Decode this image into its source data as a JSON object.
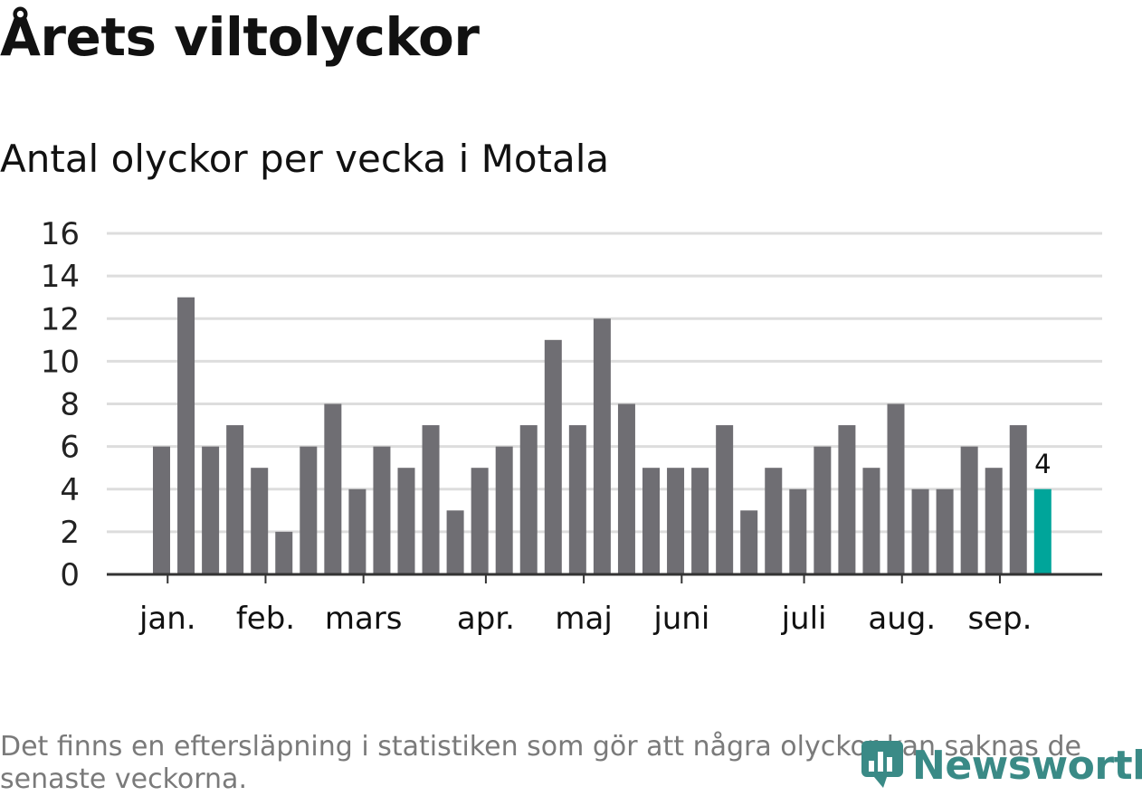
{
  "header": {
    "title": "Årets viltolyckor",
    "subtitle": "Antal olyckor per vecka i Motala"
  },
  "footnote": "Det finns en eftersläpning i statistiken som gör att några olyckor kan saknas de senaste veckorna.",
  "brand": {
    "name": "Newsworthy",
    "icon": "chart-speech-bubble-icon",
    "color": "#3a8a86"
  },
  "chart_data": {
    "type": "bar",
    "values": [
      6,
      13,
      6,
      7,
      5,
      2,
      6,
      8,
      4,
      6,
      5,
      7,
      3,
      5,
      6,
      7,
      11,
      7,
      12,
      8,
      5,
      5,
      5,
      7,
      3,
      5,
      4,
      6,
      7,
      5,
      8,
      4,
      4,
      6,
      5,
      7,
      4
    ],
    "ylim": [
      0,
      16
    ],
    "yticks": [
      0,
      2,
      4,
      6,
      8,
      10,
      12,
      14,
      16
    ],
    "month_ticks": [
      {
        "label": "jan.",
        "bar": 0.25
      },
      {
        "label": "feb.",
        "bar": 4.25
      },
      {
        "label": "mars",
        "bar": 8.25
      },
      {
        "label": "apr.",
        "bar": 13.25
      },
      {
        "label": "maj",
        "bar": 17.25
      },
      {
        "label": "juni",
        "bar": 21.25
      },
      {
        "label": "juli",
        "bar": 26.25
      },
      {
        "label": "aug.",
        "bar": 30.25
      },
      {
        "label": "sep.",
        "bar": 34.25
      }
    ],
    "highlight_index": 36,
    "highlight_label": "4",
    "colors": {
      "bar": "#6f6e73",
      "highlight": "#00a59a",
      "grid": "#dddddd",
      "axis": "#333333"
    },
    "grid": true
  }
}
